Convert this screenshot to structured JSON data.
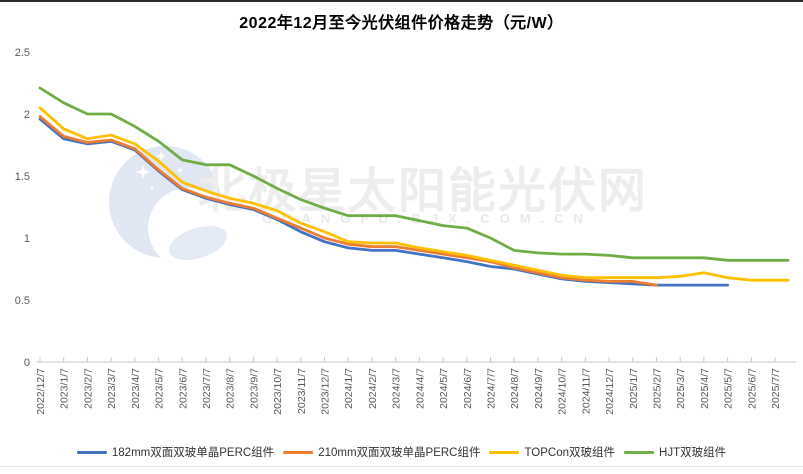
{
  "title": "2022年12月至今光伏组件价格走势（元/W）",
  "watermark": {
    "brand": "北极星太阳能光伏网",
    "domain": "GUANGFU.BJX.COM.CN"
  },
  "colors": {
    "axis": "#c9c9c9",
    "tick_label": "#595959",
    "series_blue": "#4472C4",
    "series_orange": "#ED7D31",
    "series_yellow": "#FFC000",
    "series_green": "#70AD47"
  },
  "chart_data": {
    "type": "line",
    "title": "2022年12月至今光伏组件价格走势（元/W）",
    "xlabel": "",
    "ylabel": "",
    "ylim": [
      0,
      2.5
    ],
    "yticks": [
      "0",
      "0.5",
      "1",
      "1.5",
      "2",
      "2.5"
    ],
    "grid": false,
    "legend_position": "bottom",
    "x": [
      "2022/12/7",
      "2023/1/7",
      "2023/2/7",
      "2023/3/7",
      "2023/4/7",
      "2023/5/7",
      "2023/6/7",
      "2023/7/7",
      "2023/8/7",
      "2023/9/7",
      "2023/10/7",
      "2023/11/7",
      "2023/12/7",
      "2024/1/7",
      "2024/2/7",
      "2024/3/7",
      "2024/4/7",
      "2024/5/7",
      "2024/6/7",
      "2024/7/7",
      "2024/8/7",
      "2024/9/7",
      "2024/10/7",
      "2024/11/7",
      "2024/12/7",
      "2025/1/7",
      "2025/2/7",
      "2025/3/7",
      "2025/4/7",
      "2025/5/7",
      "2025/6/7",
      "2025/7/7"
    ],
    "series": [
      {
        "name": "182mm双面双玻单晶PERC组件",
        "color": "#4472C4",
        "values": [
          1.96,
          1.8,
          1.76,
          1.78,
          1.71,
          1.54,
          1.39,
          1.32,
          1.27,
          1.23,
          1.15,
          1.05,
          0.97,
          0.92,
          0.9,
          0.9,
          0.87,
          0.84,
          0.81,
          0.77,
          0.75,
          0.71,
          0.67,
          0.65,
          0.64,
          0.63,
          0.62,
          0.62,
          0.62,
          0.62,
          null,
          null
        ]
      },
      {
        "name": "210mm双面双玻单晶PERC组件",
        "color": "#ED7D31",
        "values": [
          1.98,
          1.82,
          1.77,
          1.79,
          1.72,
          1.55,
          1.4,
          1.33,
          1.28,
          1.24,
          1.16,
          1.08,
          1.0,
          0.95,
          0.93,
          0.93,
          0.9,
          0.87,
          0.84,
          0.81,
          0.76,
          0.72,
          0.68,
          0.66,
          0.65,
          0.65,
          0.62,
          null,
          null,
          null,
          null,
          null
        ]
      },
      {
        "name": "TOPCon双玻组件",
        "color": "#FFC000",
        "values": [
          2.05,
          1.88,
          1.8,
          1.83,
          1.76,
          1.62,
          1.45,
          1.38,
          1.32,
          1.28,
          1.22,
          1.12,
          1.05,
          0.97,
          0.96,
          0.96,
          0.92,
          0.89,
          0.86,
          0.82,
          0.78,
          0.74,
          0.7,
          0.68,
          0.68,
          0.68,
          0.68,
          0.69,
          0.72,
          0.68,
          0.66,
          0.66
        ]
      },
      {
        "name": "HJT双玻组件",
        "color": "#70AD47",
        "values": [
          2.21,
          2.09,
          2.0,
          2.0,
          1.9,
          1.78,
          1.63,
          1.59,
          1.59,
          1.5,
          1.4,
          1.31,
          1.24,
          1.18,
          1.18,
          1.18,
          1.14,
          1.1,
          1.08,
          1.0,
          0.9,
          0.88,
          0.87,
          0.87,
          0.86,
          0.84,
          0.84,
          0.84,
          0.84,
          0.82,
          0.82,
          0.82
        ]
      }
    ]
  }
}
